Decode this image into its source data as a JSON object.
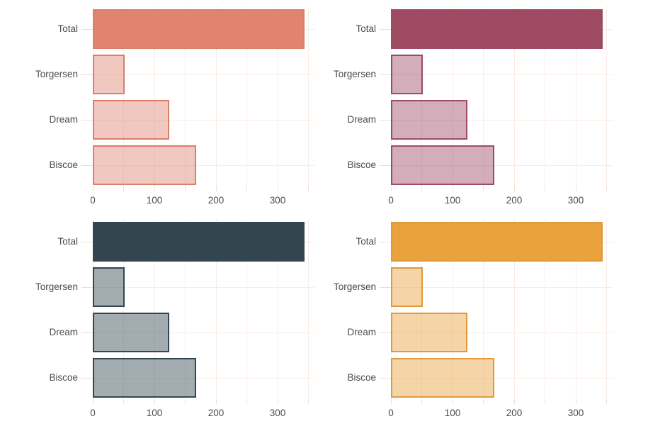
{
  "figure": {
    "background": "#FFFFFF",
    "text_color": "#4B4B4B",
    "gridline_color": "#F9ECE5",
    "tick_color": "#F2DCD2",
    "grid": true,
    "layout": "2x2-grid"
  },
  "chart_data": [
    {
      "type": "bar",
      "orientation": "horizontal",
      "theme_name": "coral",
      "categories": [
        "Total",
        "Torgersen",
        "Dream",
        "Biscoe"
      ],
      "values": [
        344,
        52,
        124,
        168
      ],
      "highlight_category": "Total",
      "xticks": [
        0,
        100,
        200,
        300
      ],
      "grid_step": 50,
      "xlim": [
        0,
        360
      ],
      "legend": "none",
      "title": "",
      "xlabel": "",
      "ylabel": "",
      "bar_color": "#E08470",
      "bar_border": "#DB7E6A",
      "muted_fill_alpha": 0.45
    },
    {
      "type": "bar",
      "orientation": "horizontal",
      "theme_name": "berry",
      "categories": [
        "Total",
        "Torgersen",
        "Dream",
        "Biscoe"
      ],
      "values": [
        344,
        52,
        124,
        168
      ],
      "highlight_category": "Total",
      "xticks": [
        0,
        100,
        200,
        300
      ],
      "grid_step": 50,
      "xlim": [
        0,
        360
      ],
      "legend": "none",
      "title": "",
      "xlabel": "",
      "ylabel": "",
      "bar_color": "#9E4A63",
      "bar_border": "#9E4A63",
      "muted_fill_alpha": 0.45
    },
    {
      "type": "bar",
      "orientation": "horizontal",
      "theme_name": "slate",
      "categories": [
        "Total",
        "Torgersen",
        "Dream",
        "Biscoe"
      ],
      "values": [
        344,
        52,
        124,
        168
      ],
      "highlight_category": "Total",
      "xticks": [
        0,
        100,
        200,
        300
      ],
      "grid_step": 50,
      "xlim": [
        0,
        360
      ],
      "legend": "none",
      "title": "",
      "xlabel": "",
      "ylabel": "",
      "bar_color": "#33464F",
      "bar_border": "#33464F",
      "muted_fill_alpha": 0.45
    },
    {
      "type": "bar",
      "orientation": "horizontal",
      "theme_name": "amber",
      "categories": [
        "Total",
        "Torgersen",
        "Dream",
        "Biscoe"
      ],
      "values": [
        344,
        52,
        124,
        168
      ],
      "highlight_category": "Total",
      "xticks": [
        0,
        100,
        200,
        300
      ],
      "grid_step": 50,
      "xlim": [
        0,
        360
      ],
      "legend": "none",
      "title": "",
      "xlabel": "",
      "ylabel": "",
      "bar_color": "#E9A23C",
      "bar_border": "#E0993C",
      "muted_fill_alpha": 0.45
    }
  ]
}
